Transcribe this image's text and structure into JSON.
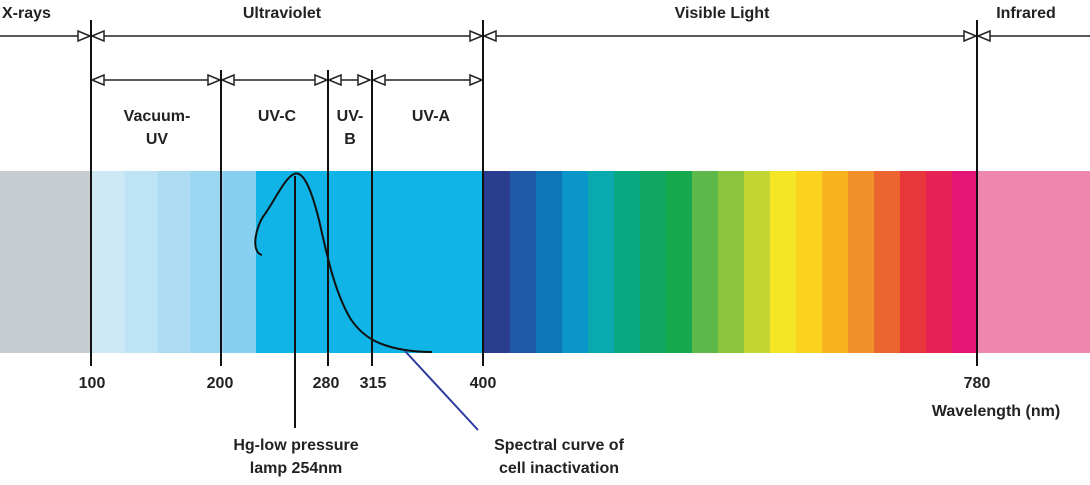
{
  "regions": {
    "xrays": "X-rays",
    "ultraviolet": "Ultraviolet",
    "visible": "Visible Light",
    "infrared": "Infrared"
  },
  "uv_bands": {
    "vacuum_line1": "Vacuum-",
    "vacuum_line2": "UV",
    "uvc": "UV-C",
    "uvb_line1": "UV-",
    "uvb_line2": "B",
    "uva": "UV-A"
  },
  "ticks": [
    "100",
    "200",
    "280",
    "315",
    "400",
    "780"
  ],
  "axis_label": "Wavelength (nm)",
  "annotations": {
    "lamp_line1": "Hg-low pressure",
    "lamp_line2": "lamp 254nm",
    "curve_line1": "Spectral curve of",
    "curve_line2": "cell inactivation"
  },
  "colors": {
    "xray": "#c7ccd3",
    "infrared": "#ee86ae",
    "uv_light": [
      "#cbe8f4",
      "#bde3f4",
      "#addcf2",
      "#9ad6f2",
      "#87d0f2"
    ],
    "uv_main": "#10b4e6",
    "visible": [
      "#2b3d8e",
      "#1f5aa8",
      "#0c76b8",
      "#0a96c8",
      "#0aa9b0",
      "#08a880",
      "#10a860",
      "#15a84c",
      "#5cb848",
      "#8cc43e",
      "#c2d634",
      "#f5e625",
      "#fbd21e",
      "#f8b31f",
      "#f2902a",
      "#ec6530",
      "#e8373a",
      "#e52455",
      "#e51577"
    ],
    "curve": "#111111",
    "pointer_line": "#2b3ba0"
  }
}
